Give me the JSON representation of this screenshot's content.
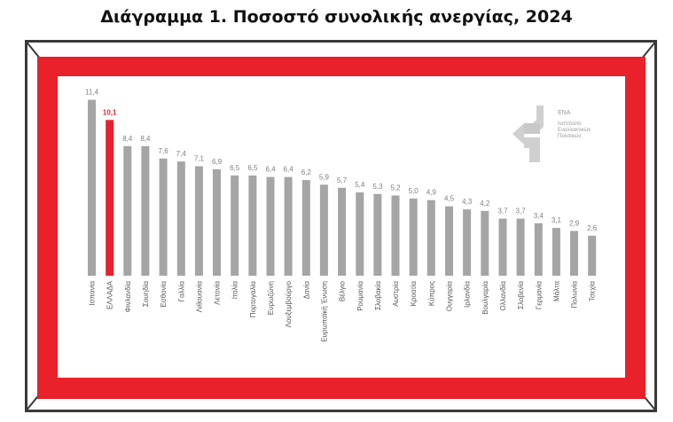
{
  "title": "Διάγραμμα 1. Ποσοστό συνολικής ανεργίας, 2024",
  "logo": {
    "abbr": "ΕΝΑ",
    "line1": "Ινστιτούτο",
    "line2": "Εναλλακτικών",
    "line3": "Πολιτικών"
  },
  "colors": {
    "bar": "#a5a5a5",
    "highlight": "#e8212b",
    "frame_band": "#e8212b",
    "label": "#7f7f7f"
  },
  "chart_data": {
    "type": "bar",
    "title": "Διάγραμμα 1. Ποσοστό συνολικής ανεργίας, 2024",
    "highlight_category": "ΕΛΛΑΔΑ",
    "categories": [
      "Ισπανία",
      "ΕΛΛΑΔΑ",
      "Φινλανδία",
      "Σουηδία",
      "Εσθονία",
      "Γαλλία",
      "Λιθουανία",
      "Λετονία",
      "Ιταλία",
      "Πορτογαλία",
      "Ευρωζώνη",
      "Λουξεμβούργο",
      "Δανία",
      "Ευρωπαϊκή Ένωση",
      "Βέλγιο",
      "Ρουμανία",
      "Σλοβακία",
      "Αυστρία",
      "Κροατία",
      "Κύπρος",
      "Ουγγαρία",
      "Ιρλανδία",
      "Βουλγαρία",
      "Ολλανδία",
      "Σλοβενία",
      "Γερμανία",
      "Μάλτα",
      "Πολωνία",
      "Τσεχία"
    ],
    "values": [
      11.4,
      10.1,
      8.4,
      8.4,
      7.6,
      7.4,
      7.1,
      6.9,
      6.5,
      6.5,
      6.4,
      6.4,
      6.2,
      5.9,
      5.7,
      5.4,
      5.3,
      5.2,
      5.0,
      4.9,
      4.5,
      4.3,
      4.2,
      3.7,
      3.7,
      3.4,
      3.1,
      2.9,
      2.6
    ],
    "value_labels": [
      "11,4",
      "10,1",
      "8,4",
      "8,4",
      "7,6",
      "7,4",
      "7,1",
      "6,9",
      "6,5",
      "6,5",
      "6,4",
      "6,4",
      "6,2",
      "5,9",
      "5,7",
      "5,4",
      "5,3",
      "5,2",
      "5,0",
      "4,9",
      "4,5",
      "4,3",
      "4,2",
      "3,7",
      "3,7",
      "3,4",
      "3,1",
      "2,9",
      "2,6"
    ],
    "ylim": [
      0,
      12
    ],
    "grid": false,
    "legend": "none"
  }
}
